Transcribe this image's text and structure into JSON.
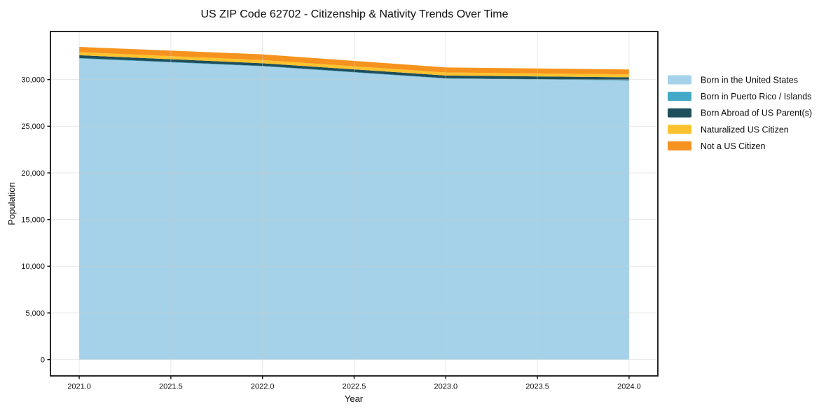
{
  "chart_data": {
    "type": "area",
    "stacked": true,
    "title": "US ZIP Code 62702 - Citizenship & Nativity Trends Over Time",
    "xlabel": "Year",
    "ylabel": "Population",
    "x": [
      2021,
      2022,
      2023,
      2024
    ],
    "series": [
      {
        "name": "Born in the United States",
        "color": "#A5D2E9",
        "values": [
          32250,
          31420,
          30100,
          29900
        ]
      },
      {
        "name": "Born in Puerto Rico / Islands",
        "color": "#44A9C6",
        "values": [
          60,
          50,
          40,
          40
        ]
      },
      {
        "name": "Born Abroad of US Parent(s)",
        "color": "#1F4E5C",
        "values": [
          300,
          280,
          290,
          300
        ]
      },
      {
        "name": "Naturalized US Citizen",
        "color": "#FCC32E",
        "values": [
          330,
          340,
          330,
          320
        ]
      },
      {
        "name": "Not a US Citizen",
        "color": "#F6931E",
        "values": [
          560,
          610,
          540,
          520
        ]
      }
    ],
    "x_ticks": [
      2021.0,
      2021.5,
      2022.0,
      2022.5,
      2023.0,
      2023.5,
      2024.0
    ],
    "x_tick_labels": [
      "2021.0",
      "2021.5",
      "2022.0",
      "2022.5",
      "2023.0",
      "2023.5",
      "2024.0"
    ],
    "y_ticks": [
      0,
      5000,
      10000,
      15000,
      20000,
      25000,
      30000
    ],
    "y_tick_labels": [
      "0",
      "5,000",
      "10,000",
      "15,000",
      "20,000",
      "25,000",
      "30,000"
    ],
    "xlim": [
      2020.843,
      2024.157
    ],
    "ylim": [
      -1750,
      35150
    ],
    "grid": true,
    "grid_color": "#cccccc",
    "legend_position": "right",
    "text_color": "#0d0d0d",
    "spine_color": "#111111",
    "background_color": "#ffffff"
  }
}
